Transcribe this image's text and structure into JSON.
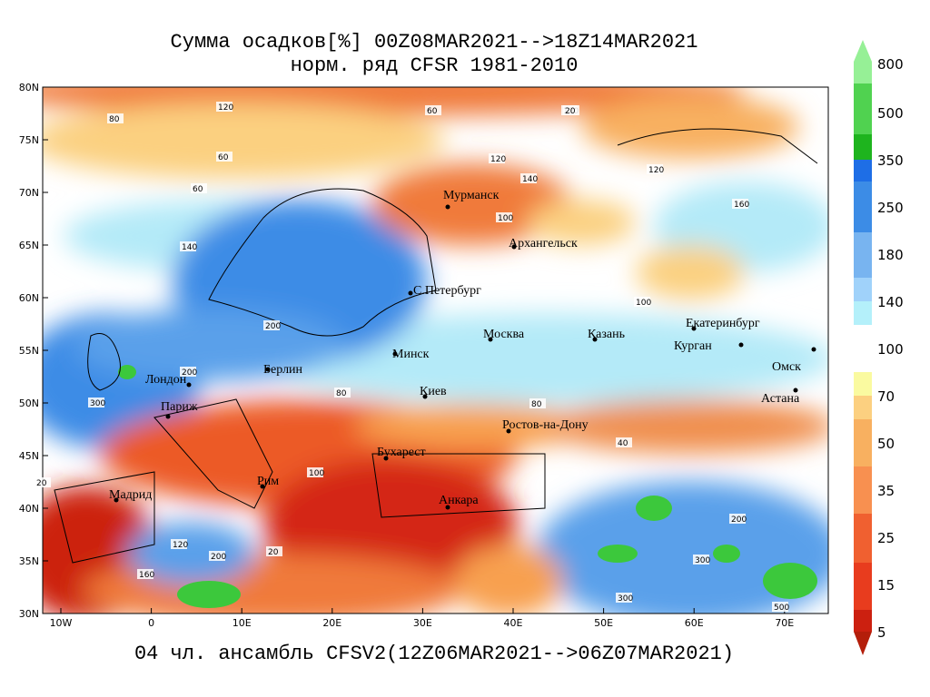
{
  "header": {
    "title": "Сумма осадков[%] 00Z08MAR2021-->18Z14MAR2021",
    "subtitle": "норм. ряд CFSR 1981-2010"
  },
  "footer": "04 чл. ансамбль CFSV2(12Z06MAR2021-->06Z07MAR2021)",
  "lat_labels": [
    "80N",
    "75N",
    "70N",
    "65N",
    "60N",
    "55N",
    "50N",
    "45N",
    "40N",
    "35N",
    "30N"
  ],
  "lon_labels": [
    "10W",
    "0",
    "10E",
    "20E",
    "30E",
    "40E",
    "50E",
    "60E",
    "70E"
  ],
  "colorbar": {
    "labels": [
      800,
      500,
      350,
      250,
      180,
      140,
      100,
      70,
      50,
      35,
      25,
      15,
      5
    ]
  },
  "cities": [
    "Мурманск",
    "Архангельск",
    "С.Петербург",
    "Москва",
    "Казань",
    "Екатеринбург",
    "Курган",
    "Омск",
    "Астана",
    "Минск",
    "Берлин",
    "Лондон",
    "Париж",
    "Киев",
    "Ростов-на-Дону",
    "Бухарест",
    "Рим",
    "Мадрид",
    "Анкара"
  ],
  "contour_labels": [
    "120",
    "80",
    "60",
    "60",
    "140",
    "120",
    "20",
    "60",
    "120",
    "140",
    "100",
    "120",
    "160",
    "100",
    "200",
    "200",
    "300",
    "80",
    "40",
    "20",
    "100",
    "200",
    "300",
    "160",
    "200",
    "120",
    "20",
    "300",
    "500",
    "80"
  ]
}
